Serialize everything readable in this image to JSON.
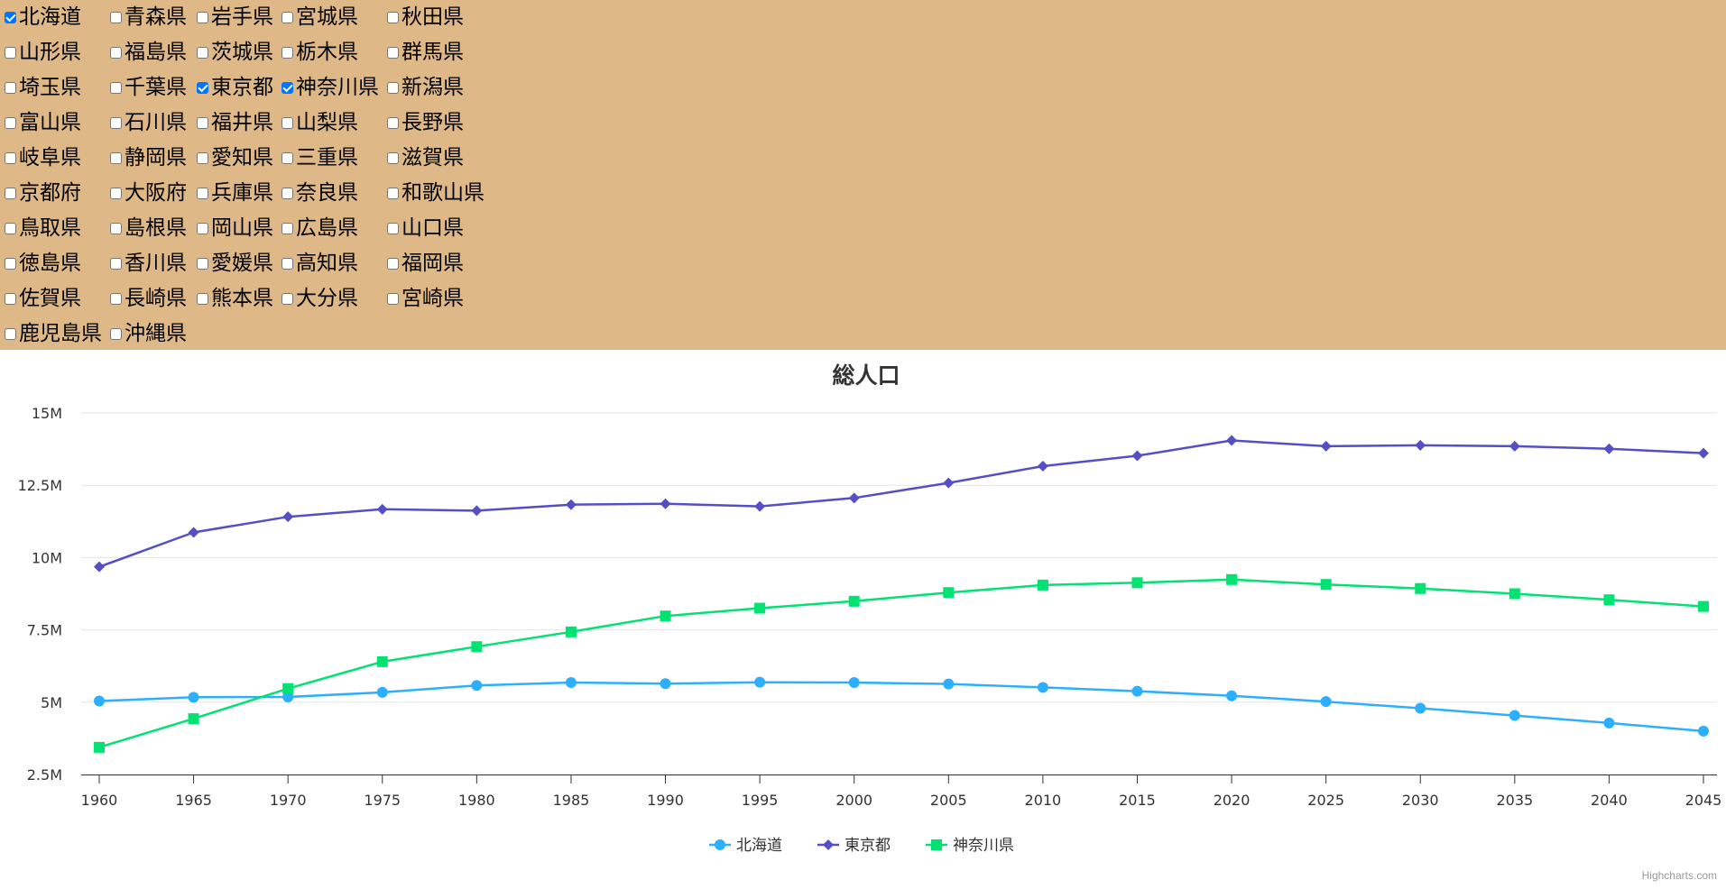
{
  "prefectures": {
    "rows": [
      [
        {
          "name": "北海道",
          "checked": true
        },
        {
          "name": "青森県",
          "checked": false
        },
        {
          "name": "岩手県",
          "checked": false
        },
        {
          "name": "宮城県",
          "checked": false
        },
        {
          "name": "秋田県",
          "checked": false
        }
      ],
      [
        {
          "name": "山形県",
          "checked": false
        },
        {
          "name": "福島県",
          "checked": false
        },
        {
          "name": "茨城県",
          "checked": false
        },
        {
          "name": "栃木県",
          "checked": false
        },
        {
          "name": "群馬県",
          "checked": false
        }
      ],
      [
        {
          "name": "埼玉県",
          "checked": false
        },
        {
          "name": "千葉県",
          "checked": false
        },
        {
          "name": "東京都",
          "checked": true
        },
        {
          "name": "神奈川県",
          "checked": true
        },
        {
          "name": "新潟県",
          "checked": false
        }
      ],
      [
        {
          "name": "富山県",
          "checked": false
        },
        {
          "name": "石川県",
          "checked": false
        },
        {
          "name": "福井県",
          "checked": false
        },
        {
          "name": "山梨県",
          "checked": false
        },
        {
          "name": "長野県",
          "checked": false
        }
      ],
      [
        {
          "name": "岐阜県",
          "checked": false
        },
        {
          "name": "静岡県",
          "checked": false
        },
        {
          "name": "愛知県",
          "checked": false
        },
        {
          "name": "三重県",
          "checked": false
        },
        {
          "name": "滋賀県",
          "checked": false
        }
      ],
      [
        {
          "name": "京都府",
          "checked": false
        },
        {
          "name": "大阪府",
          "checked": false
        },
        {
          "name": "兵庫県",
          "checked": false
        },
        {
          "name": "奈良県",
          "checked": false
        },
        {
          "name": "和歌山県",
          "checked": false
        }
      ],
      [
        {
          "name": "鳥取県",
          "checked": false
        },
        {
          "name": "島根県",
          "checked": false
        },
        {
          "name": "岡山県",
          "checked": false
        },
        {
          "name": "広島県",
          "checked": false
        },
        {
          "name": "山口県",
          "checked": false
        }
      ],
      [
        {
          "name": "徳島県",
          "checked": false
        },
        {
          "name": "香川県",
          "checked": false
        },
        {
          "name": "愛媛県",
          "checked": false
        },
        {
          "name": "高知県",
          "checked": false
        },
        {
          "name": "福岡県",
          "checked": false
        }
      ],
      [
        {
          "name": "佐賀県",
          "checked": false
        },
        {
          "name": "長崎県",
          "checked": false
        },
        {
          "name": "熊本県",
          "checked": false
        },
        {
          "name": "大分県",
          "checked": false
        },
        {
          "name": "宮崎県",
          "checked": false
        }
      ],
      [
        {
          "name": "鹿児島県",
          "checked": false
        },
        {
          "name": "沖縄県",
          "checked": false
        }
      ]
    ]
  },
  "chart_data": {
    "type": "line",
    "title": "総人口",
    "xlabel": "",
    "ylabel": "",
    "x": [
      1960,
      1965,
      1970,
      1975,
      1980,
      1985,
      1990,
      1995,
      2000,
      2005,
      2010,
      2015,
      2020,
      2025,
      2030,
      2035,
      2040,
      2045
    ],
    "ylim": [
      2500000,
      15000000
    ],
    "yticks": [
      2500000,
      5000000,
      7500000,
      10000000,
      12500000,
      15000000
    ],
    "ytick_labels": [
      "2.5M",
      "5M",
      "7.5M",
      "10M",
      "12.5M",
      "15M"
    ],
    "grid": true,
    "legend": "bottom-center",
    "series": [
      {
        "name": "北海道",
        "color": "#2caffe",
        "marker": "circle",
        "values": [
          5040000,
          5170000,
          5180000,
          5340000,
          5580000,
          5680000,
          5640000,
          5690000,
          5680000,
          5630000,
          5510000,
          5380000,
          5220000,
          5020000,
          4790000,
          4540000,
          4280000,
          4000000
        ]
      },
      {
        "name": "東京都",
        "color": "#544fc5",
        "marker": "diamond",
        "values": [
          9680000,
          10870000,
          11410000,
          11670000,
          11620000,
          11830000,
          11860000,
          11770000,
          12060000,
          12580000,
          13160000,
          13520000,
          14050000,
          13850000,
          13880000,
          13850000,
          13760000,
          13610000
        ]
      },
      {
        "name": "神奈川県",
        "color": "#00e272",
        "marker": "square",
        "values": [
          3440000,
          4430000,
          5470000,
          6400000,
          6920000,
          7430000,
          7980000,
          8250000,
          8490000,
          8790000,
          9050000,
          9130000,
          9240000,
          9070000,
          8930000,
          8750000,
          8540000,
          8310000
        ]
      }
    ]
  },
  "credit": "Highcharts.com"
}
